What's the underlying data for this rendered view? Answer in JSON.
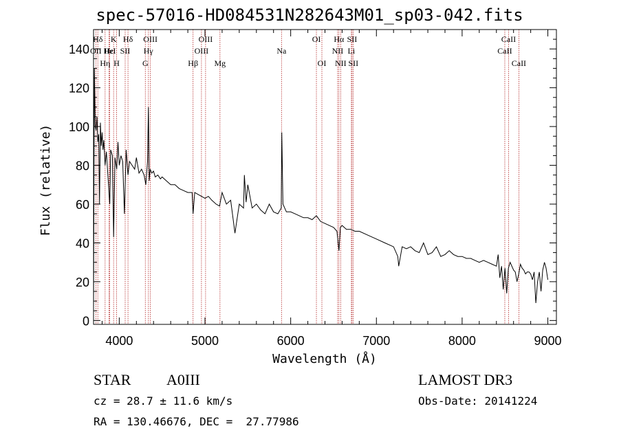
{
  "chart_data": {
    "type": "line",
    "title": "spec-57016-HD084531N282643M01_sp03-042.fits",
    "xlabel": "Wavelength (Å)",
    "ylabel": "Flux (relative)",
    "xlim": [
      3700,
      9100
    ],
    "ylim": [
      -2,
      150
    ],
    "x_ticks": [
      4000,
      5000,
      6000,
      7000,
      8000,
      9000
    ],
    "y_ticks": [
      0,
      20,
      40,
      60,
      80,
      100,
      120,
      140
    ],
    "grid": false,
    "line_color": "#000000",
    "marker_line_color": "#b22222",
    "series": [
      {
        "x": [
          3700,
          3710,
          3720,
          3730,
          3740,
          3750,
          3760,
          3770,
          3780,
          3790,
          3800,
          3810,
          3820,
          3835,
          3850,
          3870,
          3889,
          3900,
          3920,
          3934,
          3950,
          3970,
          3985,
          4000,
          4020,
          4040,
          4060,
          4080,
          4102,
          4120,
          4150,
          4180,
          4200,
          4230,
          4260,
          4290,
          4310,
          4330,
          4340,
          4350,
          4360,
          4380,
          4400,
          4420,
          4450,
          4480,
          4500,
          4550,
          4600,
          4650,
          4700,
          4750,
          4800,
          4850,
          4861,
          4880,
          4920,
          4960,
          5000,
          5040,
          5080,
          5130,
          5170,
          5200,
          5250,
          5300,
          5350,
          5400,
          5450,
          5460,
          5480,
          5500,
          5550,
          5600,
          5650,
          5700,
          5750,
          5800,
          5850,
          5890,
          5896,
          5910,
          5950,
          6000,
          6050,
          6100,
          6150,
          6200,
          6250,
          6300,
          6350,
          6400,
          6450,
          6500,
          6540,
          6563,
          6580,
          6600,
          6650,
          6700,
          6750,
          6800,
          6900,
          7000,
          7100,
          7200,
          7250,
          7260,
          7300,
          7350,
          7400,
          7450,
          7500,
          7550,
          7600,
          7650,
          7700,
          7750,
          7800,
          7850,
          7900,
          7950,
          8000,
          8050,
          8100,
          8150,
          8200,
          8250,
          8300,
          8350,
          8400,
          8420,
          8440,
          8460,
          8480,
          8500,
          8520,
          8540,
          8560,
          8580,
          8600,
          8620,
          8640,
          8660,
          8680,
          8700,
          8720,
          8740,
          8760,
          8780,
          8800,
          8820,
          8840,
          8860,
          8880,
          8900,
          8920,
          8940,
          8960,
          8980,
          9000
        ],
        "y": [
          5,
          130,
          100,
          98,
          105,
          92,
          96,
          60,
          102,
          90,
          97,
          88,
          93,
          80,
          87,
          73,
          60,
          88,
          85,
          43,
          84,
          78,
          92,
          80,
          85,
          82,
          55,
          88,
          75,
          82,
          80,
          78,
          84,
          76,
          78,
          75,
          70,
          82,
          110,
          72,
          78,
          76,
          77,
          74,
          75,
          73,
          74,
          72,
          70,
          70,
          68,
          67,
          66,
          66,
          55,
          66,
          65,
          64,
          63,
          64,
          62,
          60,
          59,
          66,
          60,
          62,
          45,
          60,
          58,
          75,
          61,
          70,
          58,
          60,
          57,
          55,
          60,
          56,
          55,
          58,
          97,
          60,
          56,
          56,
          55,
          54,
          53,
          53,
          52,
          54,
          51,
          50,
          49,
          48,
          46,
          36,
          48,
          49,
          47,
          47,
          46,
          46,
          44,
          42,
          40,
          38,
          33,
          28,
          38,
          37,
          38,
          36,
          35,
          40,
          34,
          35,
          38,
          33,
          34,
          36,
          34,
          33,
          33,
          32,
          32,
          31,
          30,
          31,
          30,
          29,
          28,
          34,
          22,
          28,
          16,
          27,
          14,
          27,
          30,
          28,
          26,
          25,
          20,
          24,
          29,
          27,
          26,
          24,
          25,
          25,
          24,
          21,
          25,
          9,
          20,
          25,
          15,
          26,
          30,
          27,
          21
        ]
      }
    ],
    "line_markers": [
      {
        "label": "Hδ",
        "x": 3750,
        "row": 1
      },
      {
        "label": "OII",
        "x": 3727,
        "row": 2
      },
      {
        "label": "K",
        "x": 3934,
        "row": 1
      },
      {
        "label": "Hε",
        "x": 3880,
        "row": 2
      },
      {
        "label": "HeI",
        "x": 3889,
        "row": 2
      },
      {
        "label": "Hη",
        "x": 3835,
        "row": 3
      },
      {
        "label": "H",
        "x": 3969,
        "row": 3
      },
      {
        "label": "Hδ",
        "x": 4102,
        "row": 1
      },
      {
        "label": "SII",
        "x": 4069,
        "row": 2
      },
      {
        "label": "OIII",
        "x": 4363,
        "row": 1
      },
      {
        "label": "Hγ",
        "x": 4340,
        "row": 2
      },
      {
        "label": "G",
        "x": 4304,
        "row": 3
      },
      {
        "label": "Hβ",
        "x": 4861,
        "row": 3
      },
      {
        "label": "OIII",
        "x": 5007,
        "row": 1
      },
      {
        "label": "OIII",
        "x": 4959,
        "row": 2
      },
      {
        "label": "Mg",
        "x": 5175,
        "row": 3
      },
      {
        "label": "Na",
        "x": 5893,
        "row": 2
      },
      {
        "label": "OI",
        "x": 6300,
        "row": 1
      },
      {
        "label": "OI",
        "x": 6364,
        "row": 3
      },
      {
        "label": "Hα",
        "x": 6563,
        "row": 1
      },
      {
        "label": "NII",
        "x": 6548,
        "row": 2
      },
      {
        "label": "NII",
        "x": 6583,
        "row": 3
      },
      {
        "label": "SII",
        "x": 6716,
        "row": 1
      },
      {
        "label": "Li",
        "x": 6708,
        "row": 2
      },
      {
        "label": "SII",
        "x": 6731,
        "row": 3
      },
      {
        "label": "CaII",
        "x": 8542,
        "row": 1
      },
      {
        "label": "CaII",
        "x": 8498,
        "row": 2
      },
      {
        "label": "CaII",
        "x": 8662,
        "row": 3
      }
    ]
  },
  "info": {
    "object_type": "STAR",
    "subclass": "A0III",
    "survey": "LAMOST DR3",
    "cz": "cz = 28.7 ± 11.6 km/s",
    "obs_date": "Obs-Date: 20141224",
    "coords": "RA = 130.46676, DEC =  27.77986"
  }
}
